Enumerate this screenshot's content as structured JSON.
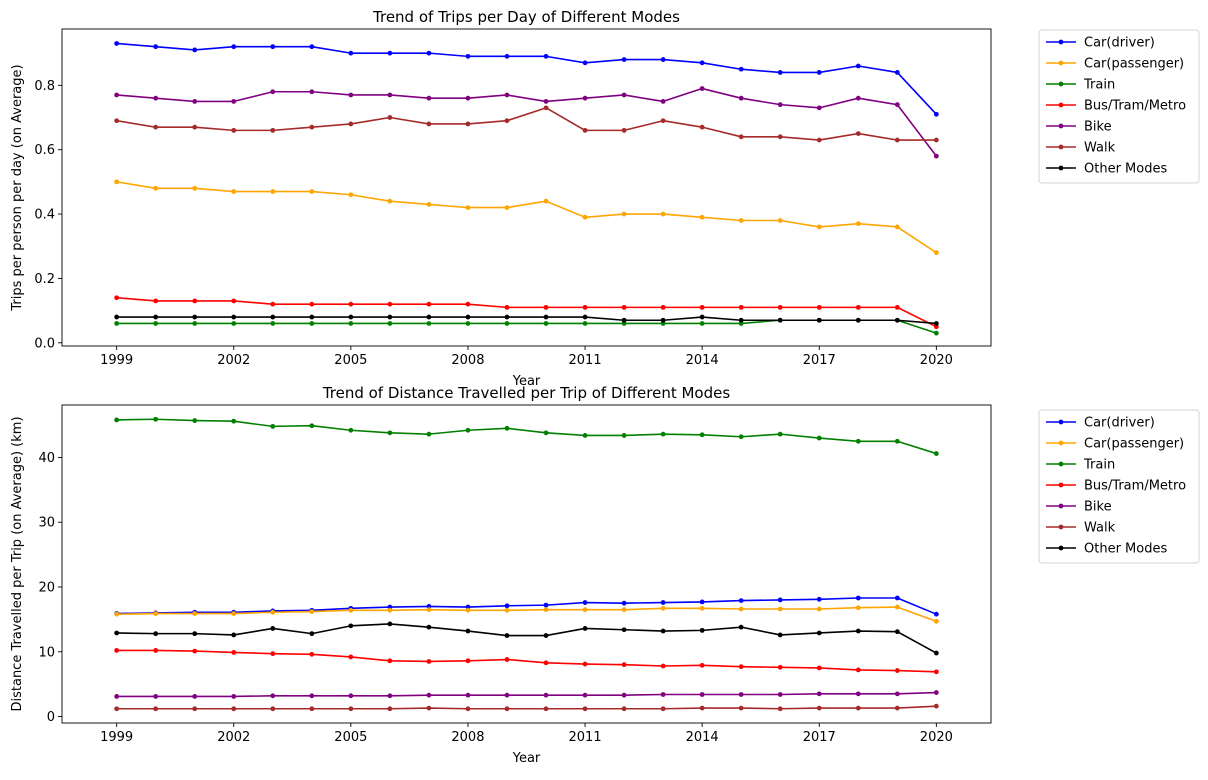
{
  "chart_data": [
    {
      "type": "line",
      "title": "Trend of Trips per Day of Different Modes",
      "xlabel": "Year",
      "ylabel": "Trips per person per day (on Average)",
      "xlim": [
        1997.6,
        2021.4
      ],
      "ylim": [
        -0.01,
        0.975
      ],
      "xticks": [
        1999,
        2002,
        2005,
        2008,
        2011,
        2014,
        2017,
        2020
      ],
      "yticks": [
        0.0,
        0.2,
        0.4,
        0.6,
        0.8
      ],
      "ytick_labels": [
        "0.0",
        "0.2",
        "0.4",
        "0.6",
        "0.8"
      ],
      "grid": false,
      "legend_position": "outside-right-top",
      "x": [
        1999,
        2000,
        2001,
        2002,
        2003,
        2004,
        2005,
        2006,
        2007,
        2008,
        2009,
        2010,
        2011,
        2012,
        2013,
        2014,
        2015,
        2016,
        2017,
        2018,
        2019,
        2020
      ],
      "series": [
        {
          "name": "Car(driver)",
          "color": "#0000ff",
          "values": [
            0.93,
            0.92,
            0.91,
            0.92,
            0.92,
            0.92,
            0.9,
            0.9,
            0.9,
            0.89,
            0.89,
            0.89,
            0.87,
            0.88,
            0.88,
            0.87,
            0.85,
            0.84,
            0.84,
            0.86,
            0.84,
            0.71
          ]
        },
        {
          "name": "Car(passenger)",
          "color": "#ffa500",
          "values": [
            0.5,
            0.48,
            0.48,
            0.47,
            0.47,
            0.47,
            0.46,
            0.44,
            0.43,
            0.42,
            0.42,
            0.44,
            0.39,
            0.4,
            0.4,
            0.39,
            0.38,
            0.38,
            0.36,
            0.37,
            0.36,
            0.28
          ]
        },
        {
          "name": "Train",
          "color": "#008000",
          "values": [
            0.06,
            0.06,
            0.06,
            0.06,
            0.06,
            0.06,
            0.06,
            0.06,
            0.06,
            0.06,
            0.06,
            0.06,
            0.06,
            0.06,
            0.06,
            0.06,
            0.06,
            0.07,
            0.07,
            0.07,
            0.07,
            0.03
          ]
        },
        {
          "name": "Bus/Tram/Metro",
          "color": "#ff0000",
          "values": [
            0.14,
            0.13,
            0.13,
            0.13,
            0.12,
            0.12,
            0.12,
            0.12,
            0.12,
            0.12,
            0.11,
            0.11,
            0.11,
            0.11,
            0.11,
            0.11,
            0.11,
            0.11,
            0.11,
            0.11,
            0.11,
            0.05
          ]
        },
        {
          "name": "Bike",
          "color": "#800080",
          "values": [
            0.77,
            0.76,
            0.75,
            0.75,
            0.78,
            0.78,
            0.77,
            0.77,
            0.76,
            0.76,
            0.77,
            0.75,
            0.76,
            0.77,
            0.75,
            0.79,
            0.76,
            0.74,
            0.73,
            0.76,
            0.74,
            0.58
          ]
        },
        {
          "name": "Walk",
          "color": "#a52a2a",
          "values": [
            0.69,
            0.67,
            0.67,
            0.66,
            0.66,
            0.67,
            0.68,
            0.7,
            0.68,
            0.68,
            0.69,
            0.73,
            0.66,
            0.66,
            0.69,
            0.67,
            0.64,
            0.64,
            0.63,
            0.65,
            0.63,
            0.63
          ]
        },
        {
          "name": "Other Modes",
          "color": "#000000",
          "values": [
            0.08,
            0.08,
            0.08,
            0.08,
            0.08,
            0.08,
            0.08,
            0.08,
            0.08,
            0.08,
            0.08,
            0.08,
            0.08,
            0.07,
            0.07,
            0.08,
            0.07,
            0.07,
            0.07,
            0.07,
            0.07,
            0.06
          ]
        }
      ]
    },
    {
      "type": "line",
      "title": "Trend of Distance Travelled per Trip of Different Modes",
      "xlabel": "Year",
      "ylabel": "Distance Travelled per Trip (on Average) (km)",
      "xlim": [
        1997.6,
        2021.4
      ],
      "ylim": [
        -1.0,
        48.1
      ],
      "xticks": [
        1999,
        2002,
        2005,
        2008,
        2011,
        2014,
        2017,
        2020
      ],
      "yticks": [
        0,
        10,
        20,
        30,
        40
      ],
      "ytick_labels": [
        "0",
        "10",
        "20",
        "30",
        "40"
      ],
      "grid": false,
      "legend_position": "outside-right-top",
      "x": [
        1999,
        2000,
        2001,
        2002,
        2003,
        2004,
        2005,
        2006,
        2007,
        2008,
        2009,
        2010,
        2011,
        2012,
        2013,
        2014,
        2015,
        2016,
        2017,
        2018,
        2019,
        2020
      ],
      "series": [
        {
          "name": "Car(driver)",
          "color": "#0000ff",
          "values": [
            15.9,
            16.0,
            16.1,
            16.1,
            16.3,
            16.4,
            16.7,
            16.9,
            17.0,
            16.9,
            17.1,
            17.2,
            17.6,
            17.5,
            17.6,
            17.7,
            17.9,
            18.0,
            18.1,
            18.3,
            18.3,
            15.8
          ]
        },
        {
          "name": "Car(passenger)",
          "color": "#ffa500",
          "values": [
            15.8,
            15.9,
            15.9,
            15.9,
            16.1,
            16.2,
            16.4,
            16.4,
            16.5,
            16.4,
            16.4,
            16.5,
            16.5,
            16.5,
            16.7,
            16.7,
            16.6,
            16.6,
            16.6,
            16.8,
            16.9,
            14.7
          ]
        },
        {
          "name": "Train",
          "color": "#008000",
          "values": [
            45.8,
            45.9,
            45.7,
            45.6,
            44.8,
            44.9,
            44.2,
            43.8,
            43.6,
            44.2,
            44.5,
            43.8,
            43.4,
            43.4,
            43.6,
            43.5,
            43.2,
            43.6,
            43.0,
            42.5,
            42.5,
            40.6
          ]
        },
        {
          "name": "Bus/Tram/Metro",
          "color": "#ff0000",
          "values": [
            10.2,
            10.2,
            10.1,
            9.9,
            9.7,
            9.6,
            9.2,
            8.6,
            8.5,
            8.6,
            8.8,
            8.3,
            8.1,
            8.0,
            7.8,
            7.9,
            7.7,
            7.6,
            7.5,
            7.2,
            7.1,
            6.9
          ]
        },
        {
          "name": "Bike",
          "color": "#800080",
          "values": [
            3.1,
            3.1,
            3.1,
            3.1,
            3.2,
            3.2,
            3.2,
            3.2,
            3.3,
            3.3,
            3.3,
            3.3,
            3.3,
            3.3,
            3.4,
            3.4,
            3.4,
            3.4,
            3.5,
            3.5,
            3.5,
            3.7
          ]
        },
        {
          "name": "Walk",
          "color": "#a52a2a",
          "values": [
            1.2,
            1.2,
            1.2,
            1.2,
            1.2,
            1.2,
            1.2,
            1.2,
            1.3,
            1.2,
            1.2,
            1.2,
            1.2,
            1.2,
            1.2,
            1.3,
            1.3,
            1.2,
            1.3,
            1.3,
            1.3,
            1.6
          ]
        },
        {
          "name": "Other Modes",
          "color": "#000000",
          "values": [
            12.9,
            12.8,
            12.8,
            12.6,
            13.6,
            12.8,
            14.0,
            14.3,
            13.8,
            13.2,
            12.5,
            12.5,
            13.6,
            13.4,
            13.2,
            13.3,
            13.8,
            12.6,
            12.9,
            13.2,
            13.1,
            9.8
          ]
        }
      ]
    }
  ]
}
